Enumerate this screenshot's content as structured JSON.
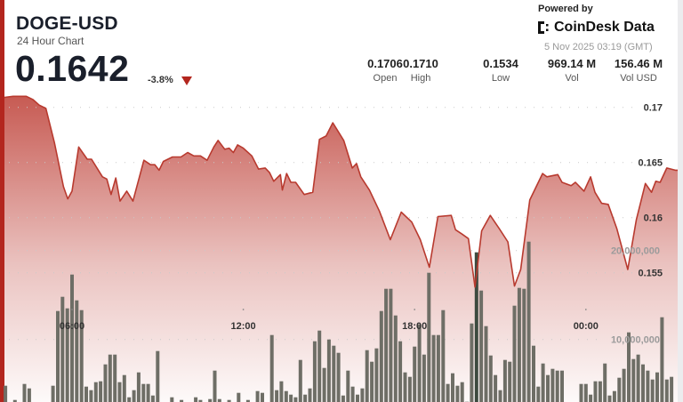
{
  "header": {
    "symbol": "DOGE-USD",
    "subtitle": "24 Hour Chart",
    "price": "0.1642",
    "change": "-3.8%",
    "change_direction": "down"
  },
  "stats": [
    {
      "value": "0.1706",
      "label": "Open"
    },
    {
      "value": "0.1710",
      "label": "High"
    },
    {
      "value": "0.1534",
      "label": "Low"
    },
    {
      "value": "969.14 M",
      "label": "Vol"
    },
    {
      "value": "156.46 M",
      "label": "Vol USD"
    }
  ],
  "branding": {
    "powered_by": "Powered by",
    "logo_text": "CoinDesk Data",
    "timestamp": "5 Nov 2025 03:19 (GMT)"
  },
  "colors": {
    "accent": "#b3261e",
    "line": "#b83a2f",
    "area": "#c4524a",
    "volume_bar": "#6e6e66",
    "volume_bar_highlight": "#3d4a3f"
  },
  "chart_data": {
    "type": "area",
    "price_axis": {
      "ticks": [
        "0.17",
        "0.165",
        "0.16",
        "0.155"
      ],
      "range": [
        0.152,
        0.1717
      ]
    },
    "volume_axis": {
      "ticks": [
        "20,000,000",
        "10,000,000"
      ]
    },
    "x_ticks": [
      "06:00",
      "12:00",
      "18:00",
      "00:00"
    ],
    "grid": true,
    "price_series": [
      [
        "03:38",
        0.1709
      ],
      [
        "03:56",
        0.171
      ],
      [
        "04:24",
        0.171
      ],
      [
        "04:38",
        0.1707
      ],
      [
        "04:51",
        0.1702
      ],
      [
        "05:05",
        0.1699
      ],
      [
        "05:23",
        0.1668
      ],
      [
        "05:42",
        0.1628
      ],
      [
        "05:51",
        0.1617
      ],
      [
        "06:00",
        0.1624
      ],
      [
        "06:14",
        0.1664
      ],
      [
        "06:32",
        0.1653
      ],
      [
        "06:41",
        0.1653
      ],
      [
        "07:04",
        0.1637
      ],
      [
        "07:13",
        0.1635
      ],
      [
        "07:22",
        0.1621
      ],
      [
        "07:32",
        0.1636
      ],
      [
        "07:41",
        0.1615
      ],
      [
        "07:55",
        0.1624
      ],
      [
        "08:08",
        0.1615
      ],
      [
        "08:31",
        0.1652
      ],
      [
        "08:45",
        0.1648
      ],
      [
        "08:54",
        0.1648
      ],
      [
        "09:03",
        0.1643
      ],
      [
        "09:12",
        0.1651
      ],
      [
        "09:31",
        0.1655
      ],
      [
        "09:49",
        0.1655
      ],
      [
        "10:03",
        0.1659
      ],
      [
        "10:16",
        0.1656
      ],
      [
        "10:30",
        0.1656
      ],
      [
        "10:44",
        0.1652
      ],
      [
        "10:58",
        0.1664
      ],
      [
        "11:07",
        0.167
      ],
      [
        "11:21",
        0.1662
      ],
      [
        "11:30",
        0.1663
      ],
      [
        "11:39",
        0.1659
      ],
      [
        "11:48",
        0.1666
      ],
      [
        "12:00",
        0.1663
      ],
      [
        "12:18",
        0.1656
      ],
      [
        "12:32",
        0.1644
      ],
      [
        "12:46",
        0.1645
      ],
      [
        "12:55",
        0.1641
      ],
      [
        "13:04",
        0.1633
      ],
      [
        "13:18",
        0.1639
      ],
      [
        "13:22",
        0.1625
      ],
      [
        "13:31",
        0.164
      ],
      [
        "13:40",
        0.1632
      ],
      [
        "13:50",
        0.1632
      ],
      [
        "14:08",
        0.1621
      ],
      [
        "14:26",
        0.1623
      ],
      [
        "14:40",
        0.1671
      ],
      [
        "14:54",
        0.1674
      ],
      [
        "15:08",
        0.1686
      ],
      [
        "15:31",
        0.167
      ],
      [
        "15:49",
        0.1645
      ],
      [
        "15:58",
        0.1649
      ],
      [
        "16:07",
        0.1637
      ],
      [
        "16:25",
        0.1625
      ],
      [
        "16:46",
        0.1606
      ],
      [
        "17:09",
        0.158
      ],
      [
        "17:32",
        0.1605
      ],
      [
        "17:54",
        0.1596
      ],
      [
        "18:12",
        0.158
      ],
      [
        "18:31",
        0.1555
      ],
      [
        "18:49",
        0.1601
      ],
      [
        "19:17",
        0.1602
      ],
      [
        "19:26",
        0.1589
      ],
      [
        "19:40",
        0.1585
      ],
      [
        "19:53",
        0.1581
      ],
      [
        "20:07",
        0.1537
      ],
      [
        "20:21",
        0.1588
      ],
      [
        "20:39",
        0.1602
      ],
      [
        "20:58",
        0.159
      ],
      [
        "21:16",
        0.1578
      ],
      [
        "21:30",
        0.1538
      ],
      [
        "21:43",
        0.1553
      ],
      [
        "22:02",
        0.1616
      ],
      [
        "22:29",
        0.164
      ],
      [
        "22:38",
        0.1637
      ],
      [
        "23:01",
        0.1639
      ],
      [
        "23:10",
        0.1632
      ],
      [
        "23:29",
        0.1629
      ],
      [
        "23:38",
        0.1632
      ],
      [
        "23:56",
        0.1624
      ],
      [
        "00:10",
        0.1637
      ],
      [
        "00:19",
        0.1623
      ],
      [
        "00:33",
        0.1613
      ],
      [
        "00:47",
        0.1612
      ],
      [
        "01:05",
        0.159
      ],
      [
        "01:28",
        0.1553
      ],
      [
        "01:46",
        0.1598
      ],
      [
        "02:05",
        0.1631
      ],
      [
        "02:18",
        0.1623
      ],
      [
        "02:27",
        0.1633
      ],
      [
        "02:36",
        0.1632
      ],
      [
        "02:50",
        0.1645
      ],
      [
        "03:08",
        0.1643
      ]
    ],
    "volume_series": {
      "start": "03:40",
      "interval_minutes": 10,
      "highlight_index": 99,
      "values": [
        4800000,
        500000,
        3200000,
        500000,
        5000000,
        4500000,
        300000,
        300000,
        300000,
        300000,
        4800000,
        13200000,
        14800000,
        13500000,
        17300000,
        14400000,
        13300000,
        4700000,
        4300000,
        5200000,
        5300000,
        7200000,
        8300000,
        8300000,
        5200000,
        6000000,
        3500000,
        4300000,
        6300000,
        5000000,
        5000000,
        3700000,
        8700000,
        500000,
        800000,
        3500000,
        1000000,
        3200000,
        500000,
        800000,
        3500000,
        3200000,
        1000000,
        3300000,
        6500000,
        3300000,
        1000000,
        3200000,
        1500000,
        4000000,
        1000000,
        3200000,
        1500000,
        4200000,
        4000000,
        1000000,
        10500000,
        4300000,
        5300000,
        4200000,
        3800000,
        3500000,
        7700000,
        3800000,
        4500000,
        9800000,
        11000000,
        6800000,
        10000000,
        9300000,
        8500000,
        3700000,
        6500000,
        4700000,
        3800000,
        4500000,
        8800000,
        7500000,
        9000000,
        13200000,
        15700000,
        15700000,
        12700000,
        9800000,
        6300000,
        5800000,
        9200000,
        11700000,
        8300000,
        17500000,
        10500000,
        10500000,
        13300000,
        5000000,
        6200000,
        4800000,
        5200000,
        3000000,
        11800000,
        19800000,
        15500000,
        11500000,
        8200000,
        6000000,
        4300000,
        7700000,
        7500000,
        13800000,
        15800000,
        15700000,
        21000000,
        9300000,
        4700000,
        7300000,
        6000000,
        6700000,
        6500000,
        6500000,
        500000,
        500000,
        500000,
        5000000,
        5000000,
        3800000,
        5300000,
        5300000,
        7300000,
        3700000,
        4200000,
        5700000,
        6700000,
        10800000,
        7800000,
        8300000,
        7200000,
        6500000,
        5500000,
        6300000,
        12500000,
        5500000,
        5800000
      ]
    }
  }
}
